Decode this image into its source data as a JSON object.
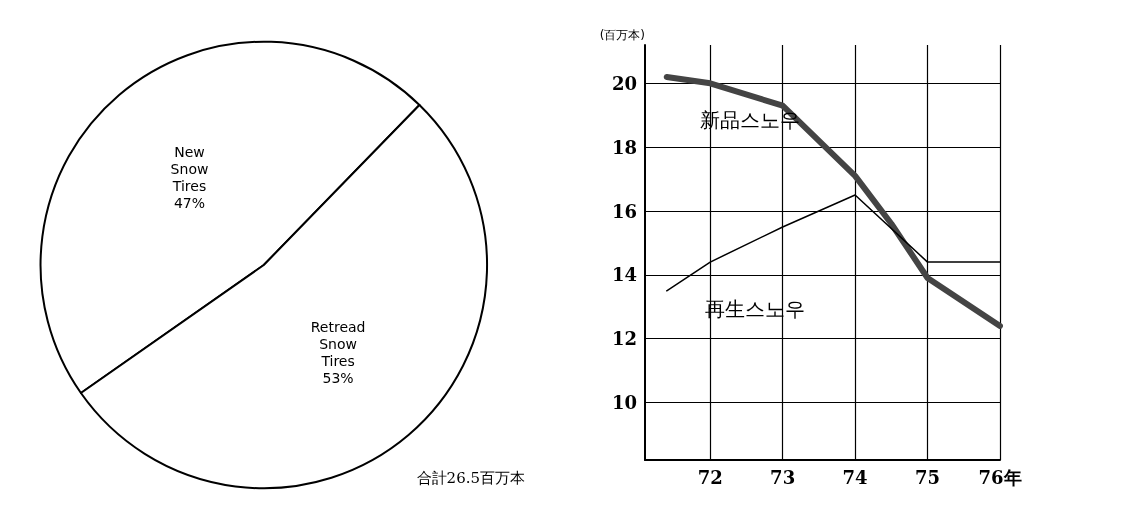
{
  "chart_data": [
    {
      "type": "pie",
      "categories": [
        "New Snow Tires",
        "Retread Snow Tires"
      ],
      "values": [
        47,
        53
      ],
      "colors": [
        "#ffffff",
        "#ffffff"
      ],
      "value_labels": [
        "47%",
        "53%"
      ],
      "annotations": [
        "合計26.5百万本"
      ]
    },
    {
      "type": "line",
      "ylabel": "(百万本)",
      "xlim": [
        71.1,
        76
      ],
      "ylim": [
        8.2,
        21.2
      ],
      "xticks": [
        72,
        73,
        74,
        {
          "value": 75,
          "label": "75"
        },
        {
          "value": 76,
          "label": "76年"
        }
      ],
      "yticks": [
        10,
        12,
        14,
        16,
        18,
        20
      ],
      "grid": true,
      "legend": false,
      "marker": "none",
      "series": [
        {
          "name": "新品스노우",
          "color": "#444444",
          "x": [
            71.4,
            72,
            73,
            74,
            74.5,
            75,
            76
          ],
          "values": [
            20.2,
            20.0,
            19.3,
            17.1,
            15.6,
            13.9,
            12.4
          ]
        },
        {
          "name": "再生스노우",
          "color": "#000000",
          "x": [
            71.4,
            72,
            73,
            74,
            75,
            76
          ],
          "values": [
            13.5,
            14.4,
            15.5,
            16.5,
            14.4,
            14.4
          ]
        }
      ]
    }
  ]
}
